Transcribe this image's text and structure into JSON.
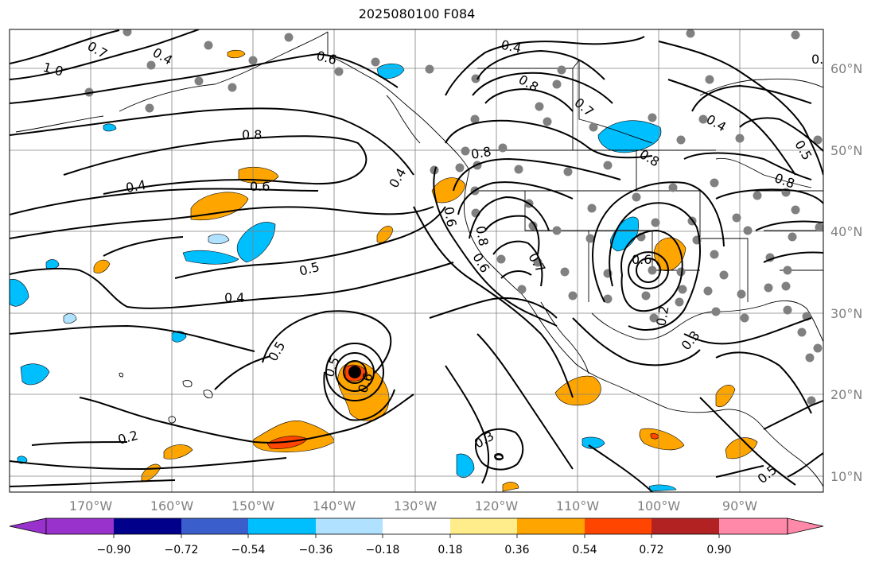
{
  "title": "2025080100 F084",
  "lat_labels": [
    "60°N",
    "50°N",
    "40°N",
    "30°N",
    "20°N",
    "10°N"
  ],
  "lon_labels": [
    "170°W",
    "160°W",
    "150°W",
    "140°W",
    "130°W",
    "120°W",
    "110°W",
    "100°W",
    "90°W"
  ],
  "contour_labels": [
    "1.0",
    "0.7",
    "0.4",
    "0.6",
    "0.4",
    "0.8",
    "0.7",
    "0.4",
    "0.5",
    "0.8",
    "0.6",
    "0.4",
    "0.8",
    "0.8",
    "0.5",
    "0.4",
    "0.6",
    "0.7",
    "0.6",
    "0.5",
    "0.4",
    "0.5",
    "0.5",
    "0.6",
    "0.2",
    "0.3",
    "0.3",
    "0.2",
    "0.5",
    "0.8",
    "0.6",
    "0.8"
  ],
  "colorbar": {
    "ticks": [
      "−0.90",
      "−0.72",
      "−0.54",
      "−0.36",
      "−0.18",
      "0.18",
      "0.36",
      "0.54",
      "0.72",
      "0.90"
    ],
    "colors": [
      "#9932cc",
      "#00008b",
      "#3a5fcd",
      "#00bfff",
      "#b0e2ff",
      "#ffffff",
      "#ffec8b",
      "#ffa500",
      "#ff4500",
      "#b22222",
      "#ff89a8"
    ]
  },
  "colors": {
    "positive": "#ffa500",
    "positive_strong": "#ff4500",
    "negative": "#00bfff",
    "negative_light": "#b0e2ff",
    "station": "#808080",
    "contour": "#000000"
  },
  "markers": [
    {
      "name": "tropical-cyclone-center",
      "color": "#000000"
    }
  ]
}
